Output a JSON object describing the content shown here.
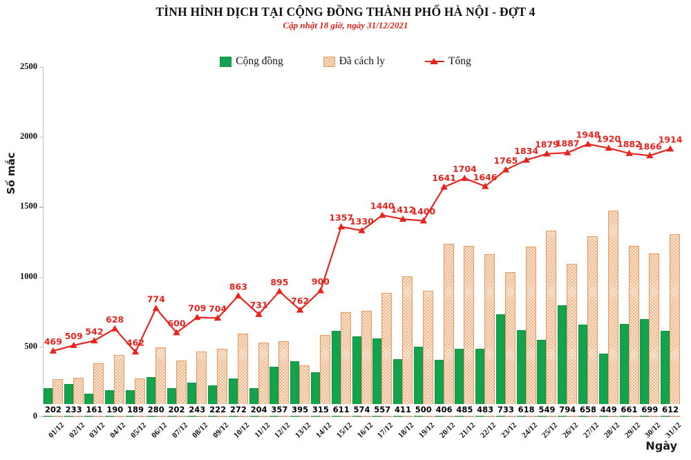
{
  "header": {
    "title": "TÌNH HÌNH DỊCH TẠI CỘNG ĐỒNG THÀNH PHỐ HÀ NỘI - ĐỢT 4",
    "subtitle": "Cập nhật 18 giờ, ngày 31/12/2021"
  },
  "legend": [
    {
      "label": "Cộng đồng",
      "swatch": "green-solid"
    },
    {
      "label": "Đã cách ly",
      "swatch": "orange-hatch"
    },
    {
      "label": "Tổng",
      "swatch": "red-line-triangle"
    }
  ],
  "axes": {
    "ylabel": "Số mắc",
    "xlabel": "Ngày",
    "yticks": [
      0,
      500,
      1000,
      1500,
      2000,
      2500
    ]
  },
  "colors": {
    "community_green": "#14a24d",
    "quarantine_orange": "#ea9a5f",
    "total_red": "#e8231e",
    "subtitle_red": "#e02318",
    "axis_gray": "#c3c3c3"
  },
  "chart_data": {
    "type": "bar",
    "subtype": "grouped bars + line overlay (combo)",
    "title": "TÌNH HÌNH DỊCH TẠI CỘNG ĐỒNG THÀNH PHỐ HÀ NỘI - ĐỢT 4",
    "xlabel": "Ngày",
    "ylabel": "Số mắc",
    "ylim": [
      0,
      2500
    ],
    "grid": false,
    "legend_position": "top",
    "categories": [
      "01/12",
      "02/12",
      "03/12",
      "04/12",
      "05/12",
      "06/12",
      "07/12",
      "08/12",
      "09/12",
      "10/12",
      "11/12",
      "12/12",
      "13/12",
      "14/12",
      "15/12",
      "16/12",
      "17/12",
      "18/12",
      "19/12",
      "20/12",
      "21/12",
      "22/12",
      "23/12",
      "24/12",
      "25/12",
      "26/12",
      "27/12",
      "28/12",
      "29/12",
      "30/12",
      "31/12"
    ],
    "series": [
      {
        "name": "Cộng đồng",
        "kind": "bar",
        "color": "#14a24d",
        "labels_shown": true,
        "values": [
          202,
          233,
          161,
          190,
          189,
          280,
          202,
          243,
          222,
          272,
          204,
          357,
          395,
          315,
          611,
          574,
          557,
          411,
          500,
          406,
          485,
          483,
          733,
          618,
          549,
          794,
          658,
          449,
          661,
          699,
          612
        ]
      },
      {
        "name": "Đã cách ly",
        "kind": "bar",
        "style": "hatched",
        "color": "#ea9a5f",
        "labels_shown": false,
        "values": [
          267,
          276,
          381,
          438,
          273,
          494,
          398,
          466,
          482,
          591,
          527,
          538,
          367,
          585,
          746,
          756,
          883,
          1001,
          900,
          1235,
          1219,
          1163,
          1032,
          1216,
          1330,
          1093,
          1290,
          1471,
          1221,
          1167,
          1302
        ]
      },
      {
        "name": "Tổng",
        "kind": "line",
        "marker": "triangle",
        "color": "#e8231e",
        "labels_shown": true,
        "values": [
          469,
          509,
          542,
          628,
          462,
          774,
          600,
          709,
          704,
          863,
          731,
          895,
          762,
          900,
          1357,
          1330,
          1440,
          1412,
          1400,
          1641,
          1704,
          1646,
          1765,
          1834,
          1879,
          1887,
          1948,
          1920,
          1882,
          1866,
          1914
        ]
      }
    ]
  }
}
